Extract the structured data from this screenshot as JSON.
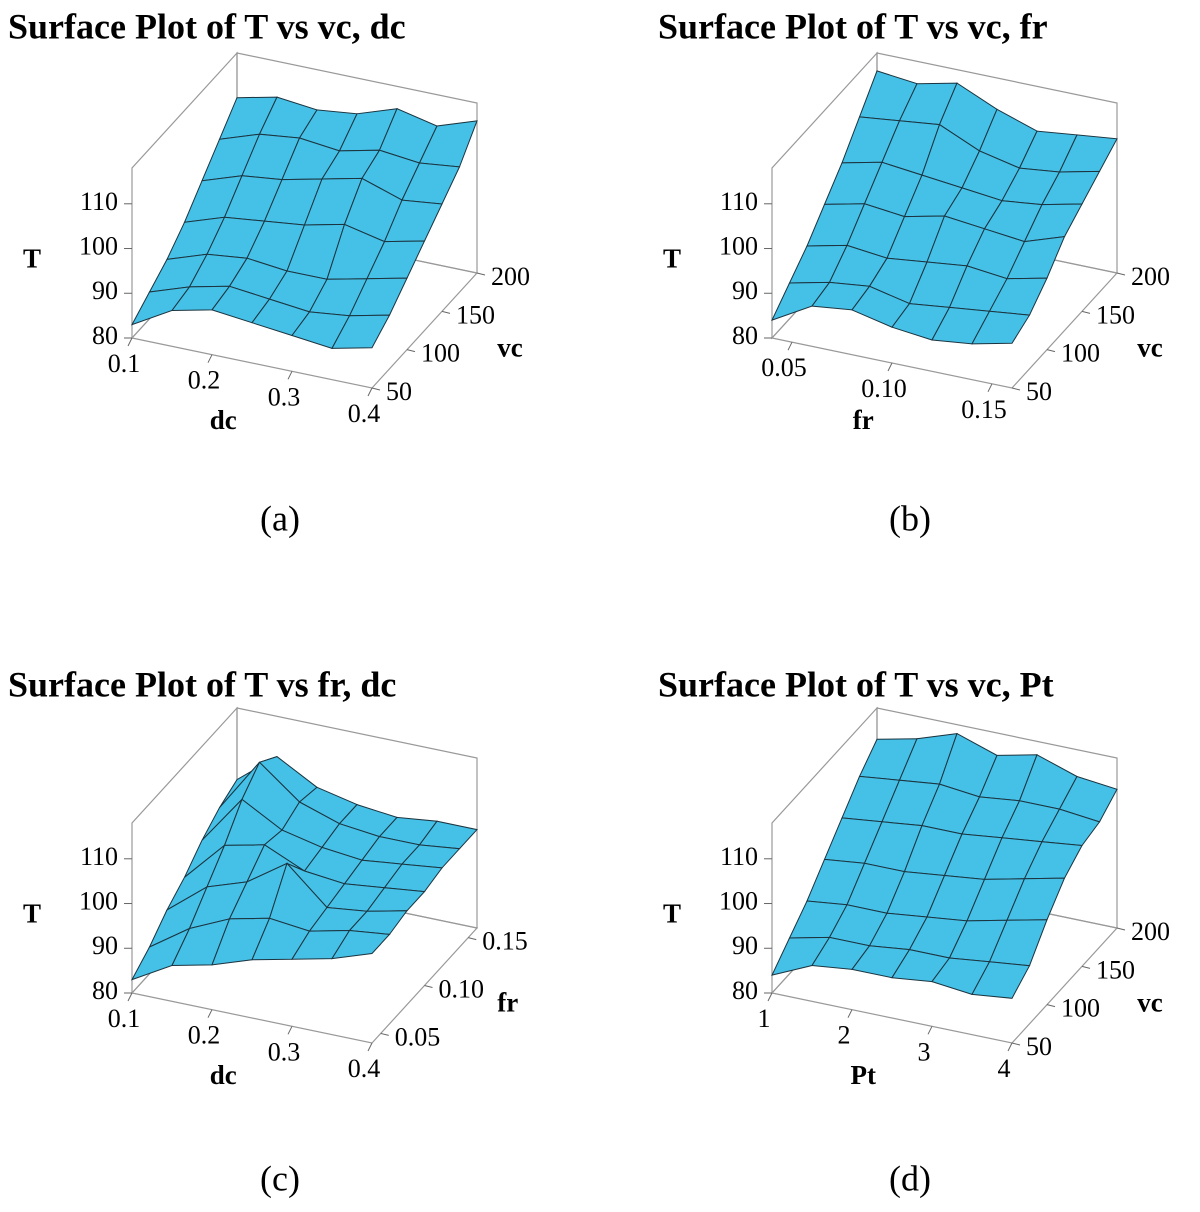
{
  "chart_data": [
    {
      "type": "surface",
      "title": "Surface Plot of T vs vc, dc",
      "caption": "(a)",
      "x_label": "dc",
      "y_label": "vc",
      "z_label": "T",
      "color": "#45c0e6",
      "x": [
        0.1,
        0.15,
        0.2,
        0.25,
        0.3,
        0.35,
        0.4
      ],
      "y": [
        50,
        75,
        100,
        125,
        150,
        175,
        200
      ],
      "z": [
        [
          83,
          88,
          90,
          89,
          88,
          87,
          89
        ],
        [
          86,
          89,
          91,
          90,
          89,
          90,
          92
        ],
        [
          89,
          92,
          93,
          92,
          92,
          94,
          96
        ],
        [
          93,
          96,
          97,
          98,
          100,
          98,
          100
        ],
        [
          98,
          101,
          102,
          104,
          106,
          103,
          104
        ],
        [
          103,
          106,
          107,
          106,
          108,
          107,
          108
        ],
        [
          108,
          110,
          109,
          110,
          113,
          111,
          114
        ]
      ],
      "xlim": [
        0.1,
        0.4
      ],
      "ylim": [
        50,
        200
      ],
      "zlim": [
        80,
        118
      ],
      "xticks": [
        0.1,
        0.2,
        0.3,
        0.4
      ],
      "yticks": [
        50,
        100,
        150,
        200
      ],
      "zticks": [
        80,
        90,
        100,
        110
      ]
    },
    {
      "type": "surface",
      "title": "Surface Plot of T vs vc, fr",
      "caption": "(b)",
      "x_label": "fr",
      "y_label": "vc",
      "z_label": "T",
      "color": "#45c0e6",
      "x": [
        0.04,
        0.06,
        0.08,
        0.1,
        0.12,
        0.14,
        0.16
      ],
      "y": [
        50,
        75,
        100,
        125,
        150,
        175,
        200
      ],
      "z": [
        [
          84,
          89,
          90,
          88,
          87,
          88,
          90
        ],
        [
          88,
          90,
          91,
          89,
          90,
          91,
          92
        ],
        [
          92,
          94,
          93,
          94,
          95,
          94,
          96
        ],
        [
          97,
          99,
          98,
          100,
          99,
          98,
          101
        ],
        [
          102,
          104,
          103,
          102,
          101,
          102,
          104
        ],
        [
          108,
          109,
          110,
          106,
          104,
          105,
          107
        ],
        [
          114,
          113,
          115,
          111,
          108,
          109,
          110
        ]
      ],
      "xlim": [
        0.04,
        0.16
      ],
      "ylim": [
        50,
        200
      ],
      "zlim": [
        80,
        118
      ],
      "xticks": [
        0.05,
        {
          "value": 0.1,
          "label": "0.10"
        },
        0.15
      ],
      "yticks": [
        50,
        100,
        150,
        200
      ],
      "zticks": [
        80,
        90,
        100,
        110
      ]
    },
    {
      "type": "surface",
      "title": "Surface Plot of T vs fr, dc",
      "caption": "(c)",
      "x_label": "dc",
      "y_label": "fr",
      "z_label": "T",
      "color": "#45c0e6",
      "x": [
        0.1,
        0.15,
        0.2,
        0.25,
        0.3,
        0.35,
        0.4
      ],
      "y": [
        0.04,
        0.06,
        0.08,
        0.1,
        0.12,
        0.14,
        0.16
      ],
      "z": [
        [
          83,
          88,
          90,
          93,
          95,
          97,
          100
        ],
        [
          86,
          92,
          96,
          98,
          97,
          99,
          100
        ],
        [
          90,
          97,
          100,
          106,
          98,
          99,
          101
        ],
        [
          93,
          102,
          104,
          100,
          99,
          100,
          101
        ],
        [
          97,
          108,
          103,
          101,
          100,
          101,
          102
        ],
        [
          100,
          112,
          105,
          102,
          101,
          101,
          102
        ],
        [
          102,
          109,
          104,
          102,
          101,
          102,
          102
        ]
      ],
      "xlim": [
        0.1,
        0.4
      ],
      "ylim": [
        0.04,
        0.16
      ],
      "zlim": [
        80,
        118
      ],
      "xticks": [
        0.1,
        0.2,
        0.3,
        0.4
      ],
      "yticks": [
        0.05,
        {
          "value": 0.1,
          "label": "0.10"
        },
        0.15
      ],
      "zticks": [
        80,
        90,
        100,
        110
      ]
    },
    {
      "type": "surface",
      "title": "Surface Plot of T vs vc, Pt",
      "caption": "(d)",
      "x_label": "Pt",
      "y_label": "vc",
      "z_label": "T",
      "color": "#45c0e6",
      "x": [
        1,
        1.5,
        2,
        2.5,
        3,
        3.5,
        4
      ],
      "y": [
        50,
        75,
        100,
        125,
        150,
        175,
        200
      ],
      "z": [
        [
          84,
          88,
          89,
          89,
          90,
          89,
          90
        ],
        [
          88,
          90,
          90,
          91,
          91,
          92,
          93
        ],
        [
          92,
          93,
          93,
          94,
          95,
          97,
          99
        ],
        [
          97,
          98,
          98,
          99,
          100,
          102,
          104
        ],
        [
          102,
          103,
          104,
          104,
          105,
          106,
          107
        ],
        [
          107,
          108,
          109,
          108,
          109,
          109,
          108
        ],
        [
          111,
          113,
          116,
          113,
          115,
          112,
          111
        ]
      ],
      "xlim": [
        1,
        4
      ],
      "ylim": [
        50,
        200
      ],
      "zlim": [
        80,
        118
      ],
      "xticks": [
        1,
        2,
        3,
        4
      ],
      "yticks": [
        50,
        100,
        150,
        200
      ],
      "zticks": [
        80,
        90,
        100,
        110
      ]
    }
  ]
}
